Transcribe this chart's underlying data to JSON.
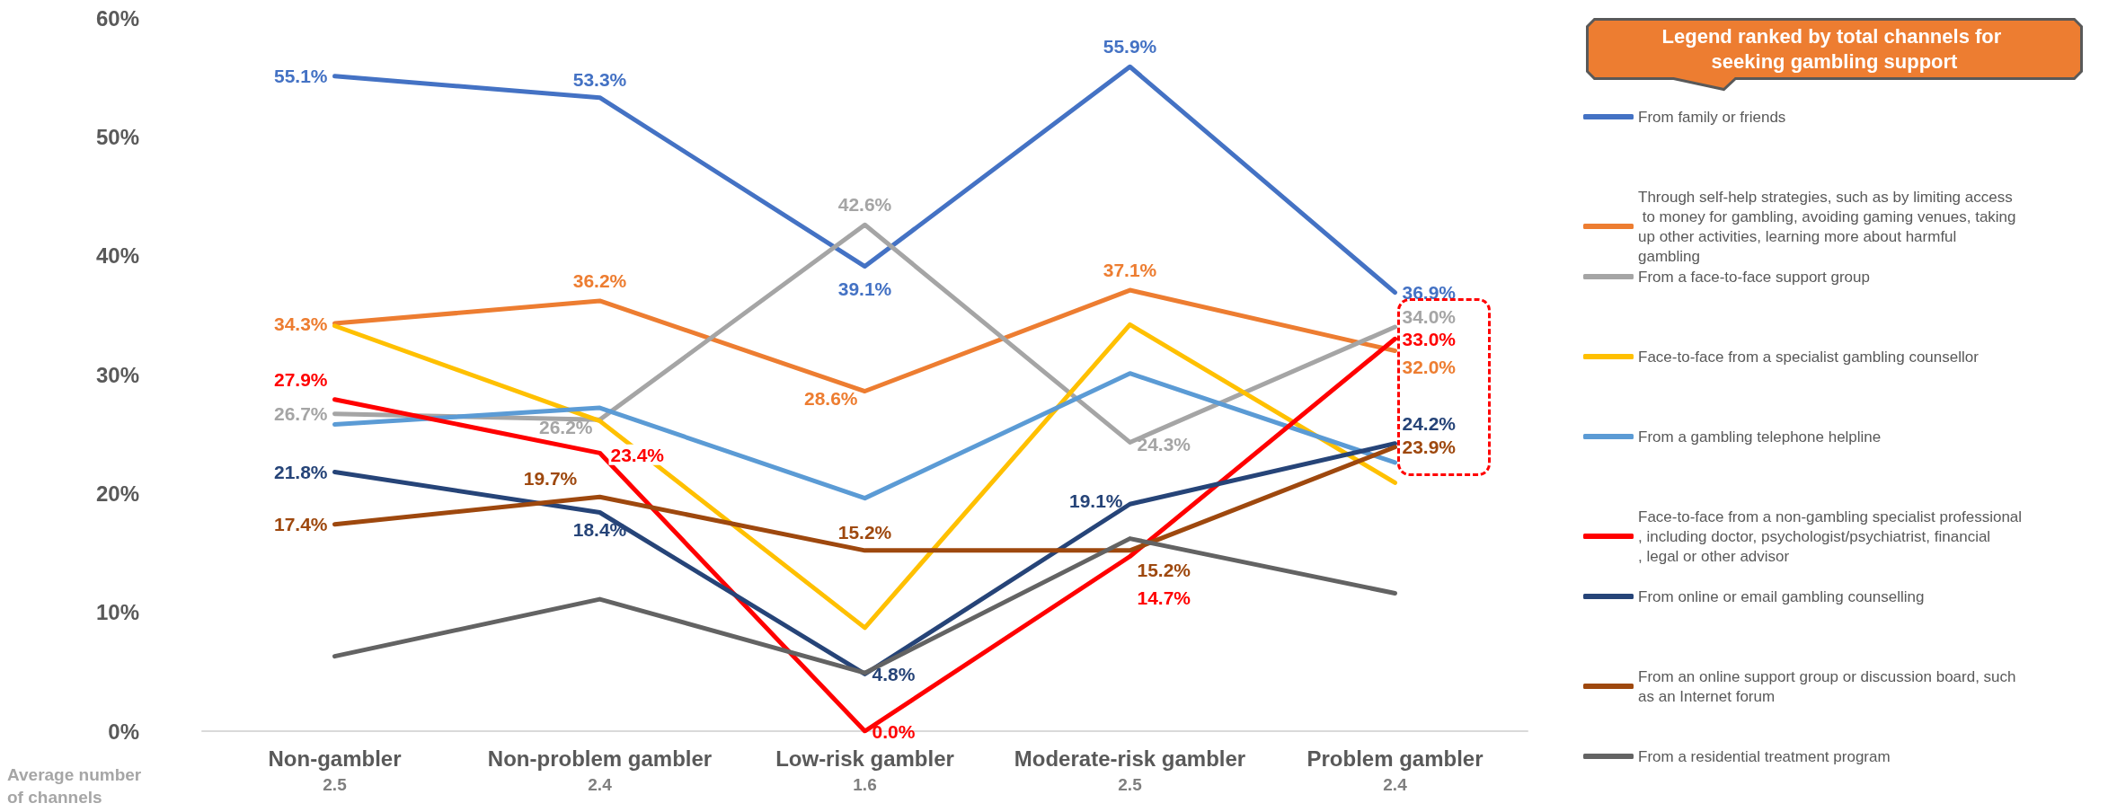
{
  "chart_data": {
    "type": "line",
    "categories": [
      "Non-gambler\n2.5",
      "Non-problem gambler\n2.4",
      "Low-risk gambler\n1.6",
      "Moderate-risk gambler\n2.5",
      "Problem gambler\n2.4"
    ],
    "legend_title": "Legend ranked by total channels for seeking gambling support",
    "annotations": [
      "Average number of channels"
    ],
    "ylim": [
      0,
      60
    ],
    "yticks": [
      {
        "value": 0,
        "label": "0%"
      },
      {
        "value": 10,
        "label": "10%"
      },
      {
        "value": 20,
        "label": "20%"
      },
      {
        "value": 30,
        "label": "30%"
      },
      {
        "value": 40,
        "label": "40%"
      },
      {
        "value": 50,
        "label": "50%"
      },
      {
        "value": 60,
        "label": "60%"
      }
    ],
    "grid": false,
    "legend": "right",
    "marker": "none",
    "line_style": "solid",
    "series": [
      {
        "name": "From family or friends",
        "color": "#4472c4",
        "values": [
          55.1,
          53.3,
          39.1,
          55.9,
          36.9
        ],
        "value_labels": [
          "55.1%",
          "53.3%",
          "39.1%",
          "55.9%",
          "36.9%"
        ]
      },
      {
        "name": "Through self-help strategies, such as by limiting access to money for gambling, avoiding gaming venues, taking up other activities, learning more about harmful gambling",
        "color": "#ed7d31",
        "values": [
          34.3,
          36.2,
          28.6,
          37.1,
          32.0
        ],
        "value_labels": [
          "34.3%",
          "36.2%",
          "28.6%",
          "37.1%",
          "32.0%"
        ]
      },
      {
        "name": "From a face-to-face support group",
        "color": "#a5a5a5",
        "values": [
          26.7,
          26.2,
          42.6,
          24.3,
          34.0
        ],
        "value_labels": [
          "26.7%",
          "26.2%",
          "42.6%",
          "24.3%",
          "34.0%"
        ]
      },
      {
        "name": "Face-to-face from a specialist gambling counsellor",
        "color": "#ffc000",
        "values": [
          34.1,
          26.1,
          8.7,
          34.2,
          20.9
        ]
      },
      {
        "name": "From a gambling telephone helpline",
        "color": "#5b9bd5",
        "values": [
          25.8,
          27.2,
          19.6,
          30.1,
          22.6
        ]
      },
      {
        "name": "Face-to-face from a non-gambling specialist professional, including doctor, psychologist/psychiatrist, financial, legal or other advisor",
        "color": "#ff0000",
        "values": [
          27.9,
          23.4,
          0.0,
          14.7,
          33.0
        ],
        "value_labels": [
          "27.9%",
          "23.4%",
          "0.0%",
          "14.7%",
          "33.0%"
        ]
      },
      {
        "name": "From online or email gambling counselling",
        "color": "#264478",
        "values": [
          21.8,
          18.4,
          4.8,
          19.1,
          24.2
        ],
        "value_labels": [
          "21.8%",
          "18.4%",
          "4.8%",
          "19.1%",
          "24.2%"
        ]
      },
      {
        "name": "From an online support group or discussion board, such as an Internet forum",
        "color": "#9e480e",
        "values": [
          17.4,
          19.7,
          15.2,
          15.2,
          23.9
        ],
        "value_labels": [
          "17.4%",
          "19.7%",
          "15.2%",
          "15.2%",
          "23.9%"
        ]
      },
      {
        "name": "From a residential treatment program",
        "color": "#636363",
        "values": [
          6.3,
          11.1,
          4.9,
          16.2,
          11.6
        ]
      }
    ]
  }
}
